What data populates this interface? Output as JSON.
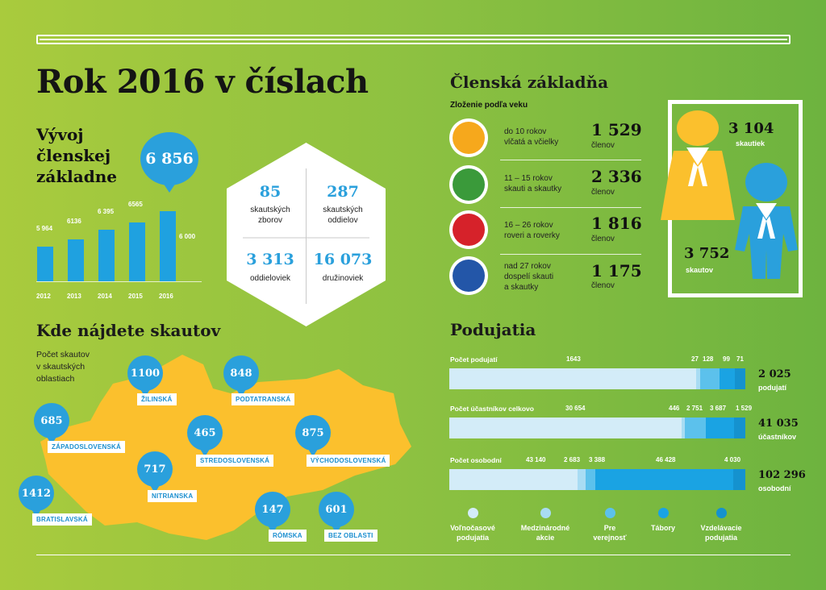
{
  "main_title": "Rok 2016 v číslach",
  "growth": {
    "title_lines": [
      "Vývoj",
      "členskej",
      "základne"
    ],
    "highlight": "6 856",
    "axis_label": "6 000",
    "bars": [
      {
        "year": "2012",
        "value": 5964,
        "label": "5 964"
      },
      {
        "year": "2013",
        "value": 6136,
        "label": "6136"
      },
      {
        "year": "2014",
        "value": 6395,
        "label": "6 395"
      },
      {
        "year": "2015",
        "value": 6565,
        "label": "6565"
      },
      {
        "year": "2016",
        "value": 6856,
        "label": ""
      }
    ]
  },
  "hexagon": {
    "cells": [
      {
        "number": "85",
        "label_lines": [
          "skautských",
          "zborov"
        ]
      },
      {
        "number": "287",
        "label_lines": [
          "skautských",
          "oddielov"
        ]
      },
      {
        "number": "3 313",
        "label_lines": [
          "oddieloviek"
        ]
      },
      {
        "number": "16 073",
        "label_lines": [
          "družinoviek"
        ]
      }
    ]
  },
  "map": {
    "title": "Kde nájdete skautov",
    "caption_lines": [
      "Počet skautov",
      "v skautských",
      "oblastiach"
    ],
    "regions": [
      {
        "name": "ŽILINSKÁ",
        "count": "1100"
      },
      {
        "name": "PODTATRANSKÁ",
        "count": "848"
      },
      {
        "name": "ZÁPADOSLOVENSKÁ",
        "count": "685"
      },
      {
        "name": "STREDOSLOVENSKÁ",
        "count": "465"
      },
      {
        "name": "VÝCHODOSLOVENSKÁ",
        "count": "875"
      },
      {
        "name": "NITRIANSKA",
        "count": "717"
      },
      {
        "name": "BRATISLAVSKÁ",
        "count": "1412"
      },
      {
        "name": "RÓMSKA",
        "count": "147"
      },
      {
        "name": "BEZ OBLASTI",
        "count": "601"
      }
    ],
    "colors": {
      "land": "#fbc02d",
      "pin": "#2aa0dc"
    }
  },
  "membership": {
    "title": "Členská základňa",
    "subtitle": "Zloženie podľa veku",
    "groups": [
      {
        "text_lines": [
          "do 10 rokov",
          "vlčatá a včielky"
        ],
        "count": "1 529",
        "unit": "členov",
        "color": "#f6a81c"
      },
      {
        "text_lines": [
          "11 – 15 rokov",
          "skauti a skautky"
        ],
        "count": "2 336",
        "unit": "členov",
        "color": "#3a9a3a"
      },
      {
        "text_lines": [
          "16 – 26 rokov",
          "roveri a roverky"
        ],
        "count": "1 816",
        "unit": "členov",
        "color": "#d6222a"
      },
      {
        "text_lines": [
          "nad 27 rokov",
          "dospelí skauti",
          "a skautky"
        ],
        "count": "1 175",
        "unit": "členov",
        "color": "#2356a8"
      }
    ],
    "gender": {
      "female_count": "3 104",
      "female_label": "skautiek",
      "male_count": "3 752",
      "male_label": "skautov"
    }
  },
  "events": {
    "title": "Podujatia",
    "rows": [
      {
        "title": "Počet podujatí",
        "values": [
          1643,
          27,
          128,
          99,
          71
        ],
        "labels": [
          "1643",
          "27",
          "128",
          "99",
          "71"
        ],
        "total": "2 025",
        "total_label": "podujatí"
      },
      {
        "title": "Počet účastníkov celkovo",
        "values": [
          30654,
          446,
          2751,
          3687,
          1529
        ],
        "labels": [
          "30 654",
          "446",
          "2 751",
          "3 687",
          "1 529"
        ],
        "total": "41 035",
        "total_label": "účastníkov"
      },
      {
        "title": "Počet osobodní",
        "values": [
          43140,
          2683,
          3388,
          46428,
          4030
        ],
        "labels": [
          "43 140",
          "2 683",
          "3 388",
          "46 428",
          "4 030"
        ],
        "total": "102 296",
        "total_label": "osobodní"
      }
    ],
    "legend": [
      {
        "label_lines": [
          "Voľnočasové",
          "podujatia"
        ],
        "color": "#d3ecf8"
      },
      {
        "label_lines": [
          "Medzinárodné",
          "akcie"
        ],
        "color": "#a8dcf3"
      },
      {
        "label_lines": [
          "Pre",
          "verejnosť"
        ],
        "color": "#5cc1ec"
      },
      {
        "label_lines": [
          "Tábory"
        ],
        "color": "#1aa3e3"
      },
      {
        "label_lines": [
          "Vzdelávacie",
          "podujatia"
        ],
        "color": "#1592cf"
      }
    ]
  }
}
